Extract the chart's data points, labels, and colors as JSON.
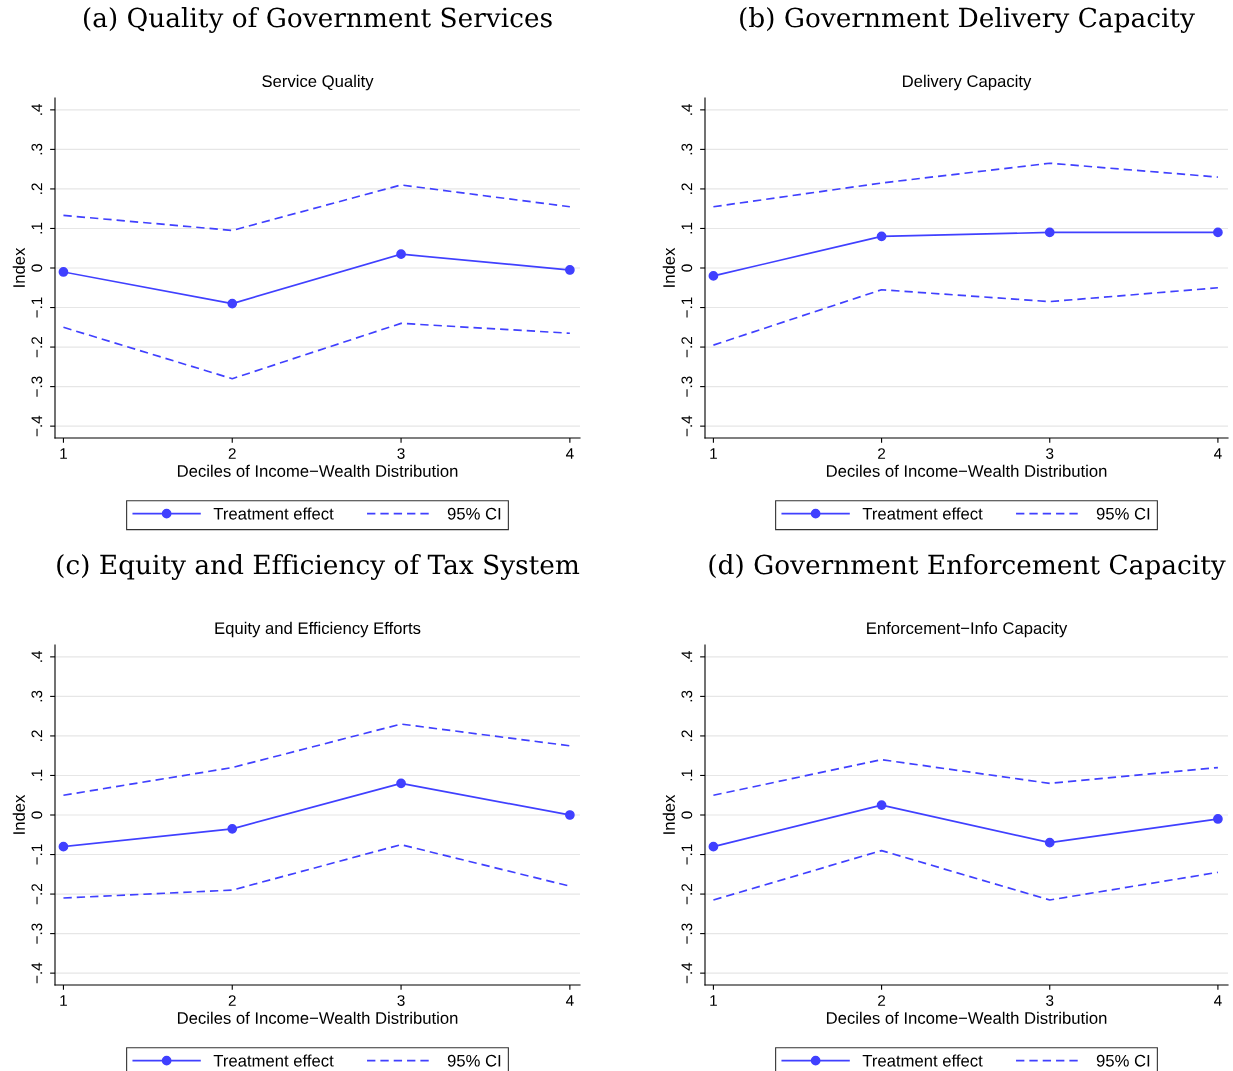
{
  "chart_data": [
    {
      "type": "line",
      "title": "(a) Quality of Government Services",
      "subtitle": "Service Quality",
      "xlabel": "Deciles of Income−Wealth Distribution",
      "ylabel": "Index",
      "x": [
        1,
        2,
        3,
        4
      ],
      "xlim": [
        0.95,
        4.06
      ],
      "xticks": [
        1,
        2,
        3,
        4
      ],
      "ylim": [
        -0.43,
        0.43
      ],
      "yticks": [
        {
          "value": -0.4,
          "label": "−.4"
        },
        {
          "value": -0.3,
          "label": "−.3"
        },
        {
          "value": -0.2,
          "label": "−.2"
        },
        {
          "value": -0.1,
          "label": "−.1"
        },
        {
          "value": 0,
          "label": "0"
        },
        {
          "value": 0.1,
          "label": ".1"
        },
        {
          "value": 0.2,
          "label": ".2"
        },
        {
          "value": 0.3,
          "label": ".3"
        },
        {
          "value": 0.4,
          "label": ".4"
        }
      ],
      "grid": "y",
      "legend": "bottom",
      "series": [
        {
          "name": "Treatment effect",
          "color": "#4040ff",
          "marker": "circle",
          "line_style": "solid",
          "values": [
            -0.01,
            -0.09,
            0.035,
            -0.005
          ]
        },
        {
          "name": "95% CI",
          "color": "#4040ff",
          "marker": "none",
          "line_style": "dashed",
          "values": [
            0.133,
            0.095,
            0.21,
            0.155
          ]
        },
        {
          "color": "#4040ff",
          "marker": "none",
          "line_style": "dashed",
          "values": [
            -0.15,
            -0.28,
            -0.14,
            -0.165
          ]
        }
      ]
    },
    {
      "type": "line",
      "title": "(b) Government Delivery Capacity",
      "subtitle": "Delivery Capacity",
      "xlabel": "Deciles of Income−Wealth Distribution",
      "ylabel": "Index",
      "x": [
        1,
        2,
        3,
        4
      ],
      "xlim": [
        0.95,
        4.06
      ],
      "xticks": [
        1,
        2,
        3,
        4
      ],
      "ylim": [
        -0.43,
        0.43
      ],
      "yticks": [
        {
          "value": -0.4,
          "label": "−.4"
        },
        {
          "value": -0.3,
          "label": "−.3"
        },
        {
          "value": -0.2,
          "label": "−.2"
        },
        {
          "value": -0.1,
          "label": "−.1"
        },
        {
          "value": 0,
          "label": "0"
        },
        {
          "value": 0.1,
          "label": ".1"
        },
        {
          "value": 0.2,
          "label": ".2"
        },
        {
          "value": 0.3,
          "label": ".3"
        },
        {
          "value": 0.4,
          "label": ".4"
        }
      ],
      "grid": "y",
      "legend": "bottom",
      "series": [
        {
          "name": "Treatment effect",
          "color": "#4040ff",
          "marker": "circle",
          "line_style": "solid",
          "values": [
            -0.02,
            0.08,
            0.09,
            0.09
          ]
        },
        {
          "name": "95% CI",
          "color": "#4040ff",
          "marker": "none",
          "line_style": "dashed",
          "values": [
            0.155,
            0.215,
            0.265,
            0.23
          ]
        },
        {
          "color": "#4040ff",
          "marker": "none",
          "line_style": "dashed",
          "values": [
            -0.195,
            -0.055,
            -0.085,
            -0.05
          ]
        }
      ]
    },
    {
      "type": "line",
      "title": "(c) Equity and Efficiency of Tax System",
      "subtitle": "Equity and Efficiency Efforts",
      "xlabel": "Deciles of Income−Wealth Distribution",
      "ylabel": "Index",
      "x": [
        1,
        2,
        3,
        4
      ],
      "xlim": [
        0.95,
        4.06
      ],
      "xticks": [
        1,
        2,
        3,
        4
      ],
      "ylim": [
        -0.43,
        0.43
      ],
      "yticks": [
        {
          "value": -0.4,
          "label": "−.4"
        },
        {
          "value": -0.3,
          "label": "−.3"
        },
        {
          "value": -0.2,
          "label": "−.2"
        },
        {
          "value": -0.1,
          "label": "−.1"
        },
        {
          "value": 0,
          "label": "0"
        },
        {
          "value": 0.1,
          "label": ".1"
        },
        {
          "value": 0.2,
          "label": ".2"
        },
        {
          "value": 0.3,
          "label": ".3"
        },
        {
          "value": 0.4,
          "label": ".4"
        }
      ],
      "grid": "y",
      "legend": "bottom",
      "series": [
        {
          "name": "Treatment effect",
          "color": "#4040ff",
          "marker": "circle",
          "line_style": "solid",
          "values": [
            -0.08,
            -0.035,
            0.08,
            0.0
          ]
        },
        {
          "name": "95% CI",
          "color": "#4040ff",
          "marker": "none",
          "line_style": "dashed",
          "values": [
            0.05,
            0.12,
            0.23,
            0.175
          ]
        },
        {
          "color": "#4040ff",
          "marker": "none",
          "line_style": "dashed",
          "values": [
            -0.21,
            -0.19,
            -0.075,
            -0.18
          ]
        }
      ]
    },
    {
      "type": "line",
      "title": "(d) Government Enforcement Capacity",
      "subtitle": "Enforcement−Info Capacity",
      "xlabel": "Deciles of Income−Wealth Distribution",
      "ylabel": "Index",
      "x": [
        1,
        2,
        3,
        4
      ],
      "xlim": [
        0.95,
        4.06
      ],
      "xticks": [
        1,
        2,
        3,
        4
      ],
      "ylim": [
        -0.43,
        0.43
      ],
      "yticks": [
        {
          "value": -0.4,
          "label": "−.4"
        },
        {
          "value": -0.3,
          "label": "−.3"
        },
        {
          "value": -0.2,
          "label": "−.2"
        },
        {
          "value": -0.1,
          "label": "−.1"
        },
        {
          "value": 0,
          "label": "0"
        },
        {
          "value": 0.1,
          "label": ".1"
        },
        {
          "value": 0.2,
          "label": ".2"
        },
        {
          "value": 0.3,
          "label": ".3"
        },
        {
          "value": 0.4,
          "label": ".4"
        }
      ],
      "grid": "y",
      "legend": "bottom",
      "series": [
        {
          "name": "Treatment effect",
          "color": "#4040ff",
          "marker": "circle",
          "line_style": "solid",
          "values": [
            -0.08,
            0.025,
            -0.07,
            -0.01
          ]
        },
        {
          "name": "95% CI",
          "color": "#4040ff",
          "marker": "none",
          "line_style": "dashed",
          "values": [
            0.05,
            0.14,
            0.08,
            0.12
          ]
        },
        {
          "color": "#4040ff",
          "marker": "none",
          "line_style": "dashed",
          "values": [
            -0.215,
            -0.09,
            -0.215,
            -0.145
          ]
        }
      ]
    }
  ]
}
